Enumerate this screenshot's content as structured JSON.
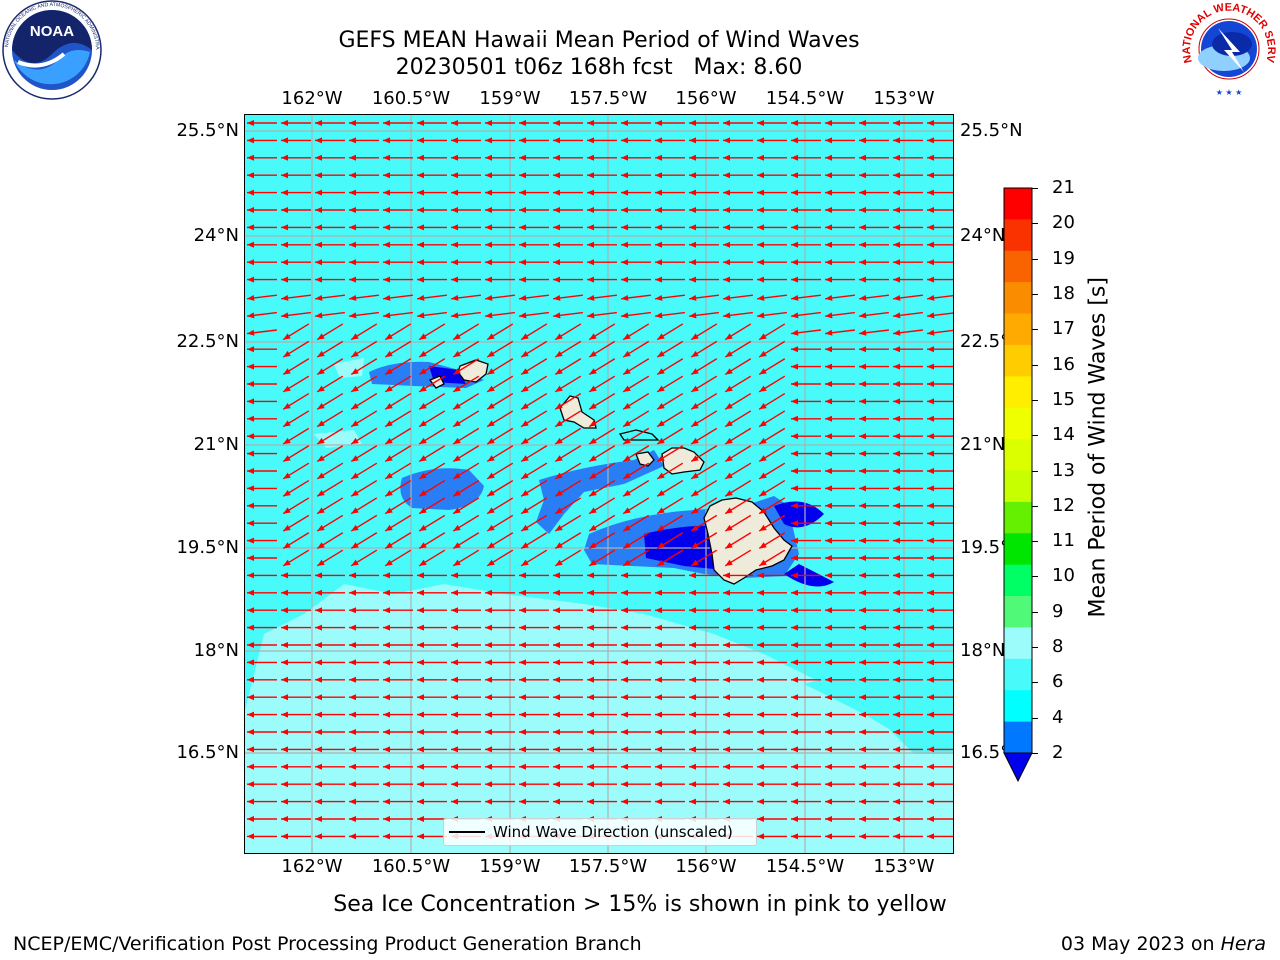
{
  "header": {
    "title_line1": "GEFS MEAN Hawaii Mean Period of Wind Waves",
    "title_line2": "20230501 t06z 168h fcst   Max: 8.60"
  },
  "logos": {
    "left": {
      "name": "noaa-logo",
      "text": "NOAA",
      "ring_text": "NATIONAL OCEANIC AND ATMOSPHERIC ADMINISTRATION · U.S. DEPARTMENT OF COMMERCE"
    },
    "right": {
      "name": "nws-logo",
      "ring_text": "NATIONAL WEATHER SERVICE"
    }
  },
  "map": {
    "lon_ticks": [
      "162°W",
      "160.5°W",
      "159°W",
      "157.5°W",
      "156°W",
      "154.5°W",
      "153°W"
    ],
    "lat_ticks_left": [
      "25.5°N",
      "24°N",
      "22.5°N",
      "21°N",
      "19.5°N",
      "18°N",
      "16.5°N"
    ],
    "lat_ticks_right": [
      "25.5°N",
      "24°N",
      "22.5°N",
      "21°N",
      "19.5°N",
      "18°N",
      "16.5°N"
    ],
    "lon_range": [
      -163.0,
      -152.7
    ],
    "lat_range": [
      15.2,
      25.8
    ],
    "arrow_color": "#ff0000",
    "land_color": "#efebdb",
    "legend_label": "Wind Wave Direction (unscaled)",
    "dominant_field_color": "#48fafa",
    "high_field_color": "#2a7ef5",
    "peak_field_color": "#0000ee",
    "low_field_color": "#9cfcfc"
  },
  "colorbar": {
    "title": "Mean Period of Wind Waves [s]",
    "labels": [
      "21",
      "20",
      "19",
      "18",
      "17",
      "16",
      "15",
      "14",
      "13",
      "12",
      "11",
      "10",
      "9",
      "8",
      "6",
      "4",
      "2"
    ],
    "colors": [
      "#ff0000",
      "#fa3200",
      "#fa6400",
      "#fa8c00",
      "#ffaa00",
      "#ffcc00",
      "#ffee00",
      "#f0ff00",
      "#dcff00",
      "#c8ff00",
      "#64f000",
      "#00e600",
      "#00ff64",
      "#50fa78",
      "#9cfcfc",
      "#48fafa",
      "#00ffff",
      "#0078ff"
    ],
    "under_color": "#0000ee"
  },
  "notes": {
    "sea_ice": "Sea Ice Concentration > 15% is shown in pink to yellow"
  },
  "footer": {
    "left": "NCEP/EMC/Verification Post Processing Product Generation Branch",
    "right_prefix": "03 May 2023 on ",
    "right_machine": "Hera"
  }
}
